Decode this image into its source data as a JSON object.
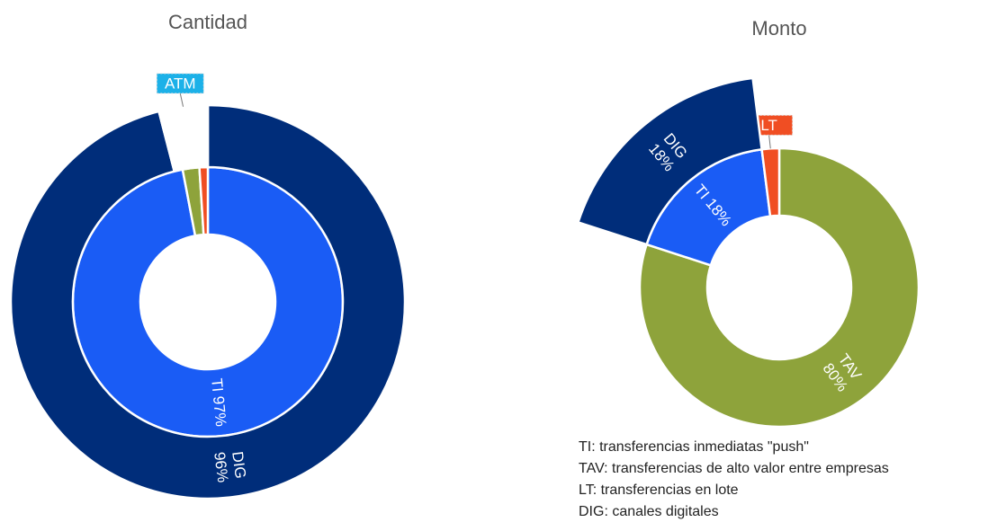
{
  "chart_data": [
    {
      "type": "sunburst",
      "title": "Cantidad",
      "rings": [
        {
          "values": [
            97,
            2,
            1
          ],
          "colors": [
            "#1a5cf5",
            "#8ea33b",
            "#f04e23"
          ],
          "value_labels": [
            [
              "TI 97%"
            ],
            null,
            null
          ]
        },
        {
          "values": [
            96,
            4
          ],
          "colors": [
            "#002d7a",
            "#ffffff"
          ],
          "value_labels": [
            [
              "DIG",
              "96%"
            ],
            [
              "ATM"
            ]
          ],
          "label_colors": [
            null,
            "#1cb1e8"
          ]
        }
      ]
    },
    {
      "type": "sunburst",
      "title": "Monto",
      "rings": [
        {
          "values": [
            80,
            18,
            2
          ],
          "colors": [
            "#8ea33b",
            "#1a5cf5",
            "#f04e23"
          ],
          "value_labels": [
            [
              "TAV",
              "80%"
            ],
            [
              "TI 18%"
            ],
            [
              "LT"
            ]
          ],
          "label_colors": [
            null,
            null,
            "#f04e23"
          ]
        },
        {
          "values": [
            null,
            18,
            null
          ],
          "colors": [
            null,
            "#002d7a",
            null
          ],
          "value_labels": [
            null,
            [
              "DIG",
              "18%"
            ],
            null
          ]
        }
      ],
      "annotations": [
        "TI: transferencias inmediatas \"push\"",
        "TAV: transferencias de alto valor entre empresas",
        "LT: transferencias en lote",
        "DIG: canales digitales"
      ]
    }
  ]
}
